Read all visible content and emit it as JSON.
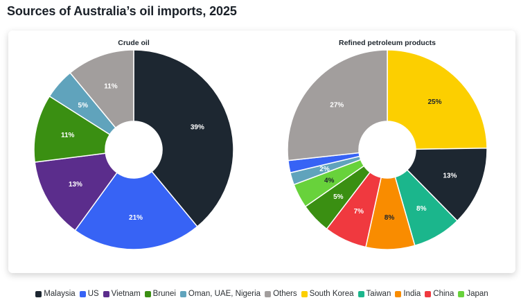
{
  "title": "Sources of Australia’s oil imports, 2025",
  "colors": {
    "Malaysia": "#1d2731",
    "US": "#3763f5",
    "Vietnam": "#5b2d8c",
    "Brunei": "#3a8f12",
    "Oman, UAE, Nigeria": "#60a3bc",
    "Others": "#a29e9d",
    "South Korea": "#fccf00",
    "Taiwan": "#1bb68c",
    "India": "#f98c00",
    "China": "#f0393f",
    "Japan": "#68d23b"
  },
  "legend": [
    "Malaysia",
    "US",
    "Vietnam",
    "Brunei",
    "Oman, UAE, Nigeria",
    "Others",
    "South Korea",
    "Taiwan",
    "India",
    "China",
    "Japan"
  ],
  "chart_data": [
    {
      "type": "pie",
      "title": "Crude oil",
      "series": [
        {
          "name": "Malaysia",
          "value": 39,
          "label": "39%"
        },
        {
          "name": "US",
          "value": 21,
          "label": "21%"
        },
        {
          "name": "Vietnam",
          "value": 13,
          "label": "13%"
        },
        {
          "name": "Brunei",
          "value": 11,
          "label": "11%"
        },
        {
          "name": "Oman, UAE, Nigeria",
          "value": 5,
          "label": "5%"
        },
        {
          "name": "Others",
          "value": 11,
          "label": "11%"
        }
      ]
    },
    {
      "type": "pie",
      "title": "Refined petroleum products",
      "series": [
        {
          "name": "South Korea",
          "value": 25,
          "label": "25%"
        },
        {
          "name": "Malaysia",
          "value": 13,
          "label": "13%"
        },
        {
          "name": "Taiwan",
          "value": 8,
          "label": "8%"
        },
        {
          "name": "India",
          "value": 8,
          "label": "8%"
        },
        {
          "name": "China",
          "value": 7,
          "label": "7%"
        },
        {
          "name": "Brunei",
          "value": 5,
          "label": "5%"
        },
        {
          "name": "Japan",
          "value": 4,
          "label": "4%"
        },
        {
          "name": "Oman, UAE, Nigeria",
          "value": 2,
          "label": "2%"
        },
        {
          "name": "US",
          "value": 2,
          "label": ""
        },
        {
          "name": "Others",
          "value": 27,
          "label": "27%"
        }
      ]
    }
  ]
}
